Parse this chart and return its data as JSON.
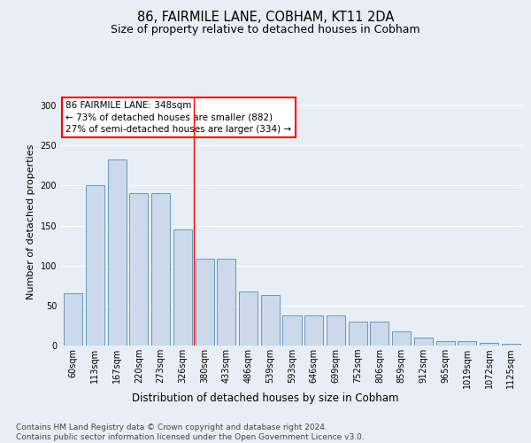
{
  "title": "86, FAIRMILE LANE, COBHAM, KT11 2DA",
  "subtitle": "Size of property relative to detached houses in Cobham",
  "xlabel": "Distribution of detached houses by size in Cobham",
  "ylabel": "Number of detached properties",
  "categories": [
    "60sqm",
    "113sqm",
    "167sqm",
    "220sqm",
    "273sqm",
    "326sqm",
    "380sqm",
    "433sqm",
    "486sqm",
    "539sqm",
    "593sqm",
    "646sqm",
    "699sqm",
    "752sqm",
    "806sqm",
    "859sqm",
    "912sqm",
    "965sqm",
    "1019sqm",
    "1072sqm",
    "1125sqm"
  ],
  "values": [
    65,
    200,
    233,
    190,
    190,
    145,
    108,
    108,
    68,
    63,
    38,
    38,
    38,
    30,
    30,
    18,
    10,
    5,
    5,
    3,
    2
  ],
  "bar_color": "#ccd9ea",
  "bar_edge_color": "#6699bb",
  "background_color": "#e8eef5",
  "annotation_text": "86 FAIRMILE LANE: 348sqm\n← 73% of detached houses are smaller (882)\n27% of semi-detached houses are larger (334) →",
  "annotation_box_color": "white",
  "annotation_box_edge_color": "red",
  "red_line_x": 5.5,
  "ylim": [
    0,
    310
  ],
  "yticks": [
    0,
    50,
    100,
    150,
    200,
    250,
    300
  ],
  "footer_text": "Contains HM Land Registry data © Crown copyright and database right 2024.\nContains public sector information licensed under the Open Government Licence v3.0.",
  "grid_color": "#ffffff",
  "title_fontsize": 10.5,
  "subtitle_fontsize": 9,
  "xlabel_fontsize": 8.5,
  "ylabel_fontsize": 8,
  "tick_fontsize": 7,
  "annotation_fontsize": 7.5,
  "footer_fontsize": 6.5
}
